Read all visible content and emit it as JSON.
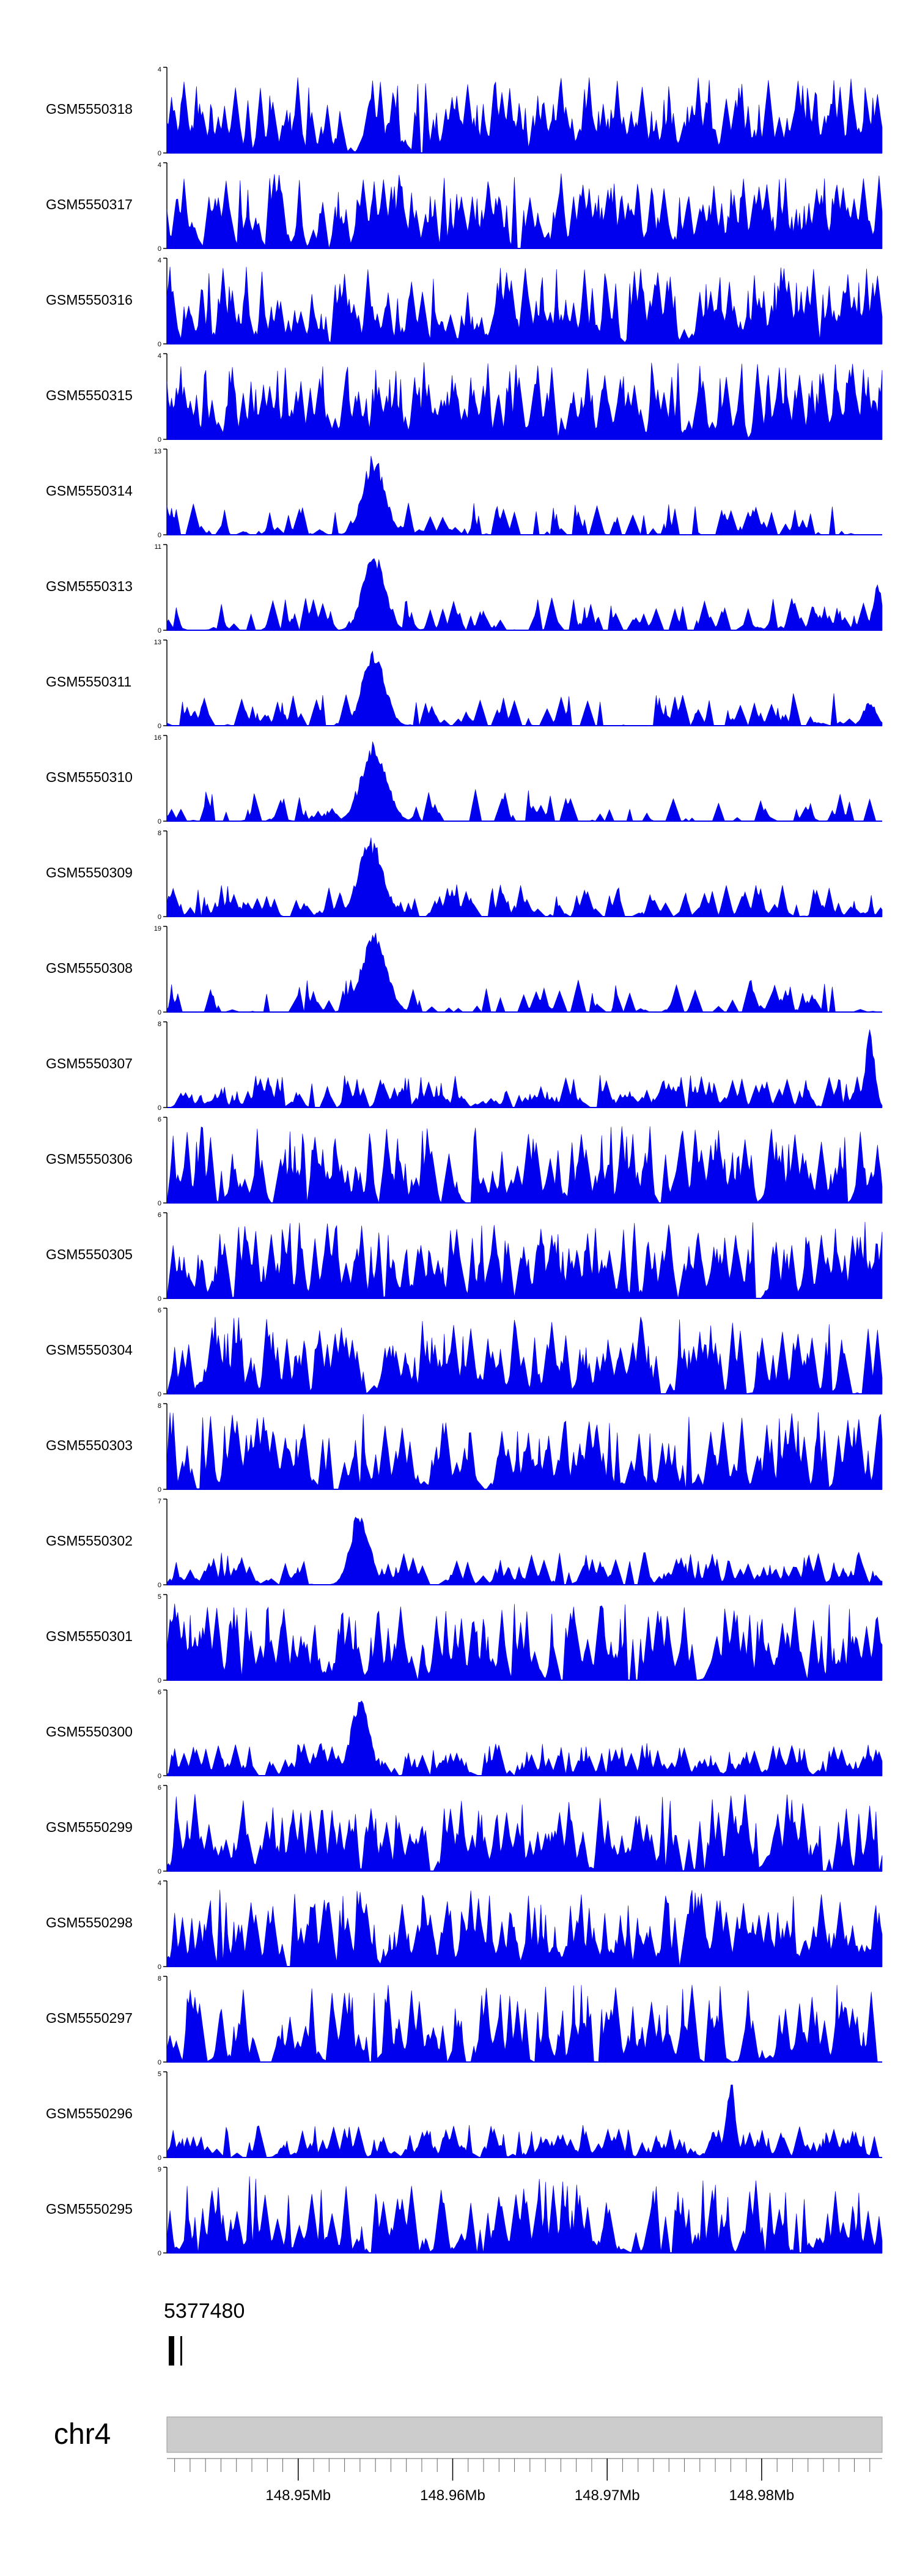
{
  "chart_data": {
    "type": "area",
    "chromosome": "chr4",
    "x_axis": {
      "unit": "Mb",
      "xlim": [
        148.9415,
        148.9878
      ],
      "ticks": [
        {
          "value": 148.95,
          "label": "148.95Mb"
        },
        {
          "value": 148.96,
          "label": "148.96Mb"
        },
        {
          "value": 148.97,
          "label": "148.97Mb"
        },
        {
          "value": 148.98,
          "label": "148.98Mb"
        }
      ]
    },
    "tracks": [
      {
        "name": "GSM5550318",
        "ymax": 4,
        "peaks": [],
        "seed": 318,
        "density": 0.65
      },
      {
        "name": "GSM5550317",
        "ymax": 4,
        "peaks": [],
        "seed": 317,
        "density": 0.65
      },
      {
        "name": "GSM5550316",
        "ymax": 4,
        "peaks": [],
        "seed": 316,
        "density": 0.6
      },
      {
        "name": "GSM5550315",
        "ymax": 4,
        "peaks": [],
        "seed": 315,
        "density": 0.7
      },
      {
        "name": "GSM5550314",
        "ymax": 13,
        "peaks": [
          {
            "x": 148.9549,
            "height": 12.5,
            "width": 0.0007
          }
        ],
        "seed": 314,
        "density": 0.25
      },
      {
        "name": "GSM5550313",
        "ymax": 11,
        "peaks": [
          {
            "x": 148.9549,
            "height": 10.5,
            "width": 0.0007
          },
          {
            "x": 148.9875,
            "height": 6,
            "width": 0.0003
          }
        ],
        "seed": 313,
        "density": 0.3
      },
      {
        "name": "GSM5550311",
        "ymax": 13,
        "peaks": [
          {
            "x": 148.9549,
            "height": 12.5,
            "width": 0.0007
          },
          {
            "x": 148.987,
            "height": 4,
            "width": 0.0004
          }
        ],
        "seed": 311,
        "density": 0.25
      },
      {
        "name": "GSM5550310",
        "ymax": 16,
        "peaks": [
          {
            "x": 148.9549,
            "height": 15.5,
            "width": 0.0008
          }
        ],
        "seed": 310,
        "density": 0.2
      },
      {
        "name": "GSM5550309",
        "ymax": 8,
        "peaks": [
          {
            "x": 148.9547,
            "height": 7.5,
            "width": 0.0008
          }
        ],
        "seed": 309,
        "density": 0.4
      },
      {
        "name": "GSM5550308",
        "ymax": 19,
        "peaks": [
          {
            "x": 148.9549,
            "height": 18.5,
            "width": 0.0008
          }
        ],
        "seed": 308,
        "density": 0.2
      },
      {
        "name": "GSM5550307",
        "ymax": 8,
        "peaks": [
          {
            "x": 148.987,
            "height": 7.5,
            "width": 0.0003
          }
        ],
        "seed": 307,
        "density": 0.5
      },
      {
        "name": "GSM5550306",
        "ymax": 6,
        "peaks": [],
        "seed": 306,
        "density": 0.55
      },
      {
        "name": "GSM5550305",
        "ymax": 6,
        "peaks": [],
        "seed": 305,
        "density": 0.6
      },
      {
        "name": "GSM5550304",
        "ymax": 6,
        "peaks": [],
        "seed": 304,
        "density": 0.55
      },
      {
        "name": "GSM5550303",
        "ymax": 8,
        "peaks": [],
        "seed": 303,
        "density": 0.5
      },
      {
        "name": "GSM5550302",
        "ymax": 7,
        "peaks": [
          {
            "x": 148.954,
            "height": 6.5,
            "width": 0.0006
          }
        ],
        "seed": 302,
        "density": 0.5
      },
      {
        "name": "GSM5550301",
        "ymax": 5,
        "peaks": [],
        "seed": 301,
        "density": 0.6
      },
      {
        "name": "GSM5550300",
        "ymax": 6,
        "peaks": [
          {
            "x": 148.954,
            "height": 5.5,
            "width": 0.0006
          }
        ],
        "seed": 300,
        "density": 0.55
      },
      {
        "name": "GSM5550299",
        "ymax": 6,
        "peaks": [],
        "seed": 299,
        "density": 0.55
      },
      {
        "name": "GSM5550298",
        "ymax": 4,
        "peaks": [],
        "seed": 298,
        "density": 0.7
      },
      {
        "name": "GSM5550297",
        "ymax": 8,
        "peaks": [],
        "seed": 297,
        "density": 0.5
      },
      {
        "name": "GSM5550296",
        "ymax": 5,
        "peaks": [
          {
            "x": 148.978,
            "height": 4.6,
            "width": 0.0003
          }
        ],
        "seed": 296,
        "density": 0.6
      },
      {
        "name": "GSM5550295",
        "ymax": 9,
        "peaks": [],
        "seed": 295,
        "density": 0.5
      }
    ],
    "annotation": {
      "label": "5377480"
    },
    "colors": {
      "signal": "#0000ee",
      "ideogram": "#cccccc",
      "axis": "#000000"
    }
  }
}
